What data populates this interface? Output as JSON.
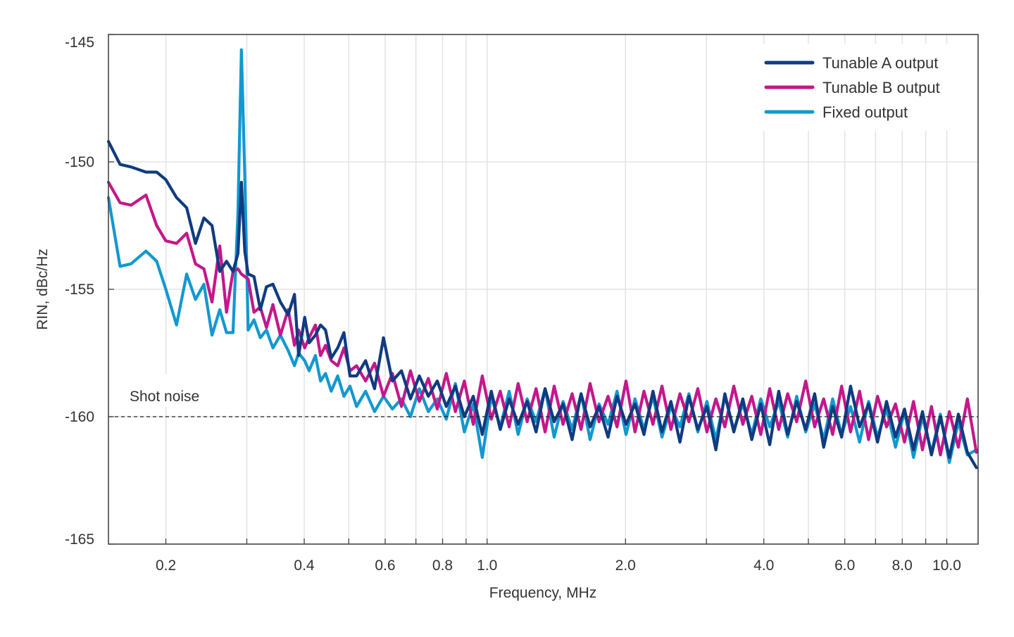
{
  "chart_data": {
    "type": "line",
    "title": "",
    "xlabel": "Frequency, MHz",
    "ylabel": "RIN, dBc/Hz",
    "x_scale": "log",
    "xlim": [
      0.15,
      11.7
    ],
    "ylim": [
      -165,
      -145
    ],
    "grid": true,
    "legend_position": "top-right",
    "x_ticks": [
      0.2,
      0.3,
      0.4,
      0.5,
      0.6,
      0.7,
      0.8,
      0.9,
      1.0,
      2.0,
      3.0,
      4.0,
      5.0,
      6.0,
      7.0,
      8.0,
      9.0,
      10.0
    ],
    "x_tick_labels": [
      {
        "value": 0.2,
        "label": "0.2"
      },
      {
        "value": 0.4,
        "label": "0.4"
      },
      {
        "value": 0.6,
        "label": "0.6"
      },
      {
        "value": 0.8,
        "label": "0.8"
      },
      {
        "value": 1.0,
        "label": "1.0"
      },
      {
        "value": 2.0,
        "label": "2.0"
      },
      {
        "value": 4.0,
        "label": "4.0"
      },
      {
        "value": 6.0,
        "label": "6.0"
      },
      {
        "value": 8.0,
        "label": "8.0"
      },
      {
        "value": 10.0,
        "label": "10.0"
      }
    ],
    "y_tick_labels": [
      {
        "value": -145,
        "label": "-145"
      },
      {
        "value": -150,
        "label": "-150"
      },
      {
        "value": -155,
        "label": "-155"
      },
      {
        "value": -160,
        "label": "-160"
      },
      {
        "value": -165,
        "label": "-165"
      }
    ],
    "reference_line": {
      "label": "Shot noise",
      "y": -160,
      "style": "dashed",
      "color": "#222222"
    },
    "x": [
      0.15,
      0.159,
      0.168,
      0.181,
      0.191,
      0.2,
      0.211,
      0.222,
      0.232,
      0.242,
      0.252,
      0.262,
      0.271,
      0.28,
      0.287,
      0.292,
      0.297,
      0.302,
      0.311,
      0.321,
      0.331,
      0.342,
      0.355,
      0.369,
      0.381,
      0.389,
      0.401,
      0.41,
      0.423,
      0.434,
      0.445,
      0.458,
      0.473,
      0.488,
      0.503,
      0.52,
      0.544,
      0.569,
      0.595,
      0.622,
      0.651,
      0.681,
      0.712,
      0.745,
      0.779,
      0.815,
      0.853,
      0.892,
      0.933,
      0.976,
      1.021,
      1.068,
      1.117,
      1.168,
      1.222,
      1.278,
      1.337,
      1.399,
      1.463,
      1.531,
      1.601,
      1.675,
      1.752,
      1.833,
      1.917,
      2.005,
      2.098,
      2.194,
      2.295,
      2.401,
      2.511,
      2.627,
      2.748,
      2.874,
      3.007,
      3.145,
      3.29,
      3.441,
      3.6,
      3.765,
      3.939,
      4.12,
      4.31,
      4.508,
      4.716,
      4.933,
      5.16,
      5.397,
      5.646,
      5.906,
      6.177,
      6.462,
      6.759,
      7.07,
      7.396,
      7.736,
      8.092,
      8.465,
      8.854,
      9.262,
      9.688,
      10.13,
      10.6,
      11.09,
      11.6
    ],
    "series": [
      {
        "name": "Fixed output",
        "color": "#1398cf",
        "y": [
          -151.4,
          -154.1,
          -154.0,
          -153.5,
          -153.9,
          -155.0,
          -156.4,
          -154.4,
          -155.4,
          -154.8,
          -156.8,
          -155.8,
          -156.7,
          -156.7,
          -152.0,
          -145.6,
          -150.5,
          -156.6,
          -156.2,
          -156.9,
          -156.6,
          -157.3,
          -156.8,
          -157.4,
          -158.0,
          -157.5,
          -157.8,
          -158.2,
          -157.6,
          -158.6,
          -158.3,
          -159.0,
          -158.4,
          -159.2,
          -158.8,
          -159.6,
          -159.0,
          -159.8,
          -159.2,
          -159.7,
          -159.3,
          -160.0,
          -158.9,
          -159.8,
          -159.3,
          -160.1,
          -158.7,
          -160.6,
          -159.5,
          -161.6,
          -159.2,
          -160.4,
          -159.0,
          -160.7,
          -159.3,
          -160.2,
          -158.9,
          -160.8,
          -159.4,
          -160.5,
          -159.1,
          -160.9,
          -159.5,
          -160.3,
          -159.0,
          -160.7,
          -159.3,
          -160.5,
          -159.2,
          -160.8,
          -159.6,
          -160.4,
          -159.1,
          -160.6,
          -159.4,
          -160.9,
          -159.2,
          -160.5,
          -159.5,
          -160.7,
          -159.3,
          -160.4,
          -159.4,
          -160.8,
          -159.2,
          -160.6,
          -159.5,
          -160.9,
          -159.3,
          -160.7,
          -159.6,
          -161.0,
          -159.4,
          -160.8,
          -159.7,
          -161.2,
          -159.8,
          -161.6,
          -160.0,
          -161.4,
          -159.9,
          -161.8,
          -160.2,
          -161.5,
          -161.3
        ]
      },
      {
        "name": "Tunable B output",
        "color": "#c4178b",
        "y": [
          -150.8,
          -151.6,
          -151.7,
          -151.3,
          -152.5,
          -153.1,
          -153.2,
          -152.8,
          -154.0,
          -154.2,
          -155.5,
          -153.3,
          -155.9,
          -154.3,
          -154.2,
          -154.4,
          -154.5,
          -154.6,
          -155.9,
          -155.7,
          -156.5,
          -155.6,
          -156.8,
          -155.8,
          -157.2,
          -156.6,
          -157.3,
          -156.9,
          -156.4,
          -157.6,
          -157.2,
          -157.8,
          -158.0,
          -157.3,
          -158.2,
          -158.0,
          -158.6,
          -157.9,
          -159.2,
          -158.3,
          -159.6,
          -158.2,
          -159.4,
          -158.5,
          -159.7,
          -158.3,
          -159.8,
          -158.6,
          -160.3,
          -158.4,
          -160.1,
          -159.0,
          -160.4,
          -158.7,
          -160.2,
          -158.9,
          -160.6,
          -158.8,
          -160.3,
          -159.1,
          -160.5,
          -158.7,
          -160.2,
          -159.2,
          -160.4,
          -158.6,
          -160.6,
          -159.0,
          -160.3,
          -158.8,
          -160.5,
          -159.1,
          -160.2,
          -158.9,
          -160.6,
          -159.3,
          -160.4,
          -158.8,
          -160.3,
          -159.2,
          -160.7,
          -158.9,
          -160.5,
          -159.1,
          -160.2,
          -158.6,
          -160.4,
          -159.3,
          -160.7,
          -158.8,
          -160.6,
          -159.0,
          -160.9,
          -159.2,
          -160.4,
          -159.5,
          -161.0,
          -159.4,
          -161.3,
          -159.6,
          -161.5,
          -159.8,
          -161.2,
          -159.3,
          -161.4
        ]
      },
      {
        "name": "Tunable A output",
        "color": "#0f3b80",
        "y": [
          -149.2,
          -150.1,
          -150.2,
          -150.4,
          -150.4,
          -150.7,
          -151.4,
          -151.8,
          -153.2,
          -152.2,
          -152.5,
          -154.3,
          -153.9,
          -154.3,
          -153.6,
          -150.8,
          -153.5,
          -154.4,
          -154.5,
          -155.8,
          -154.9,
          -154.8,
          -155.5,
          -156.0,
          -155.2,
          -157.6,
          -156.1,
          -157.1,
          -156.8,
          -156.4,
          -156.6,
          -157.7,
          -157.3,
          -156.7,
          -158.4,
          -158.4,
          -157.8,
          -158.9,
          -156.9,
          -158.6,
          -158.2,
          -159.3,
          -158.4,
          -159.2,
          -158.6,
          -159.6,
          -158.8,
          -160.0,
          -159.2,
          -160.7,
          -159.0,
          -160.5,
          -159.3,
          -160.3,
          -159.4,
          -160.6,
          -158.9,
          -160.2,
          -159.5,
          -160.9,
          -159.1,
          -160.4,
          -159.6,
          -160.8,
          -159.2,
          -160.3,
          -159.5,
          -160.7,
          -159.0,
          -160.6,
          -159.4,
          -161.0,
          -159.2,
          -160.5,
          -159.6,
          -161.3,
          -159.1,
          -160.6,
          -159.3,
          -160.9,
          -159.5,
          -161.1,
          -159.0,
          -160.7,
          -159.4,
          -160.5,
          -159.1,
          -161.2,
          -159.6,
          -160.8,
          -158.8,
          -160.4,
          -159.5,
          -161.0,
          -159.4,
          -160.8,
          -159.7,
          -161.3,
          -159.8,
          -161.5,
          -160.0,
          -161.6,
          -159.9,
          -161.4,
          -162.0
        ]
      }
    ],
    "legend": [
      {
        "label": "Tunable A output",
        "color": "#0f3b80"
      },
      {
        "label": "Tunable B output",
        "color": "#c4178b"
      },
      {
        "label": "Fixed output",
        "color": "#1398cf"
      }
    ]
  }
}
